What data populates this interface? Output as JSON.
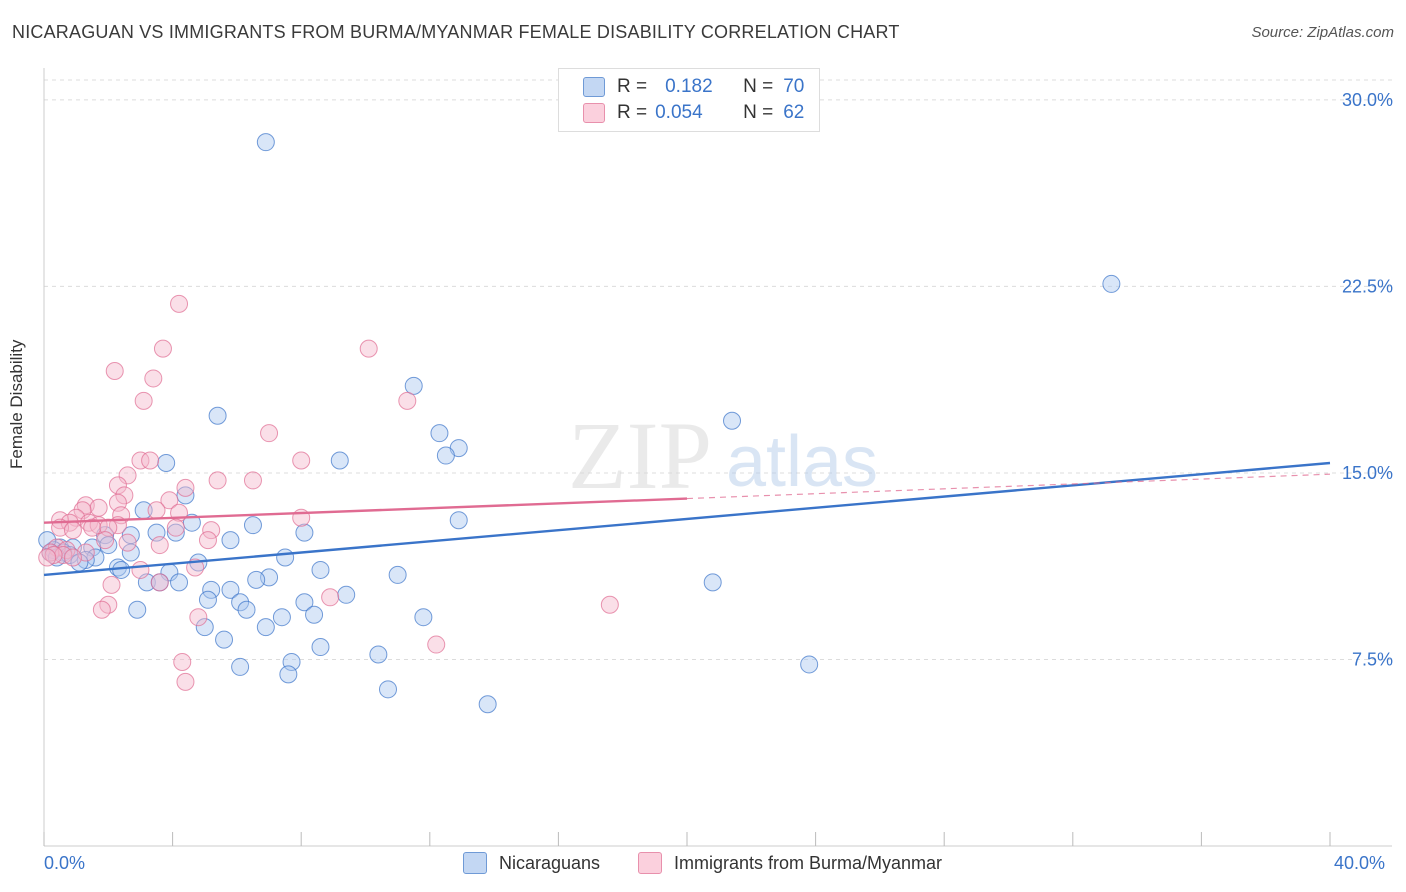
{
  "header": {
    "title": "NICARAGUAN VS IMMIGRANTS FROM BURMA/MYANMAR FEMALE DISABILITY CORRELATION CHART",
    "source": "Source: ZipAtlas.com"
  },
  "watermark": {
    "zip": "ZIP",
    "atlas": "atlas"
  },
  "colors": {
    "blue": "#3a74c9",
    "blue_fill": "#aac8f0",
    "pink": "#e06b92",
    "pink_fill": "#f5b9cc",
    "grid": "#dcdcdc",
    "axis_text": "#3a74c9"
  },
  "legend_top": [
    {
      "r_label": "R =",
      "r_value": "0.182",
      "n_label": "N =",
      "n_value": "70",
      "color": "blue"
    },
    {
      "r_label": "R =",
      "r_value": "0.054",
      "n_label": "N =",
      "n_value": "62",
      "color": "pink"
    }
  ],
  "legend_bottom": [
    {
      "label": "Nicaraguans",
      "color": "blue"
    },
    {
      "label": "Immigrants from Burma/Myanmar",
      "color": "pink"
    }
  ],
  "x_axis_labels": {
    "min": "0.0%",
    "max": "40.0%"
  },
  "chart_data": {
    "type": "scatter",
    "title": "NICARAGUAN VS IMMIGRANTS FROM BURMA/MYANMAR FEMALE DISABILITY CORRELATION CHART",
    "xlabel": "",
    "ylabel": "Female Disability",
    "xlim": [
      0,
      40
    ],
    "ylim": [
      0,
      30.8
    ],
    "y_ticks": [
      {
        "value": 7.5,
        "label": "7.5%"
      },
      {
        "value": 15.0,
        "label": "15.0%"
      },
      {
        "value": 22.5,
        "label": "22.5%"
      },
      {
        "value": 30.0,
        "label": "30.0%"
      }
    ],
    "grid": true,
    "legend_position": "top-center",
    "series": [
      {
        "name": "Nicaraguans",
        "color": "blue",
        "points": [
          [
            6.9,
            28.3
          ],
          [
            33.2,
            22.6
          ],
          [
            11.5,
            18.5
          ],
          [
            5.4,
            17.3
          ],
          [
            21.4,
            17.1
          ],
          [
            12.3,
            16.6
          ],
          [
            12.9,
            16.0
          ],
          [
            12.5,
            15.7
          ],
          [
            9.2,
            15.5
          ],
          [
            3.8,
            15.4
          ],
          [
            4.4,
            14.1
          ],
          [
            3.1,
            13.5
          ],
          [
            12.9,
            13.1
          ],
          [
            4.6,
            13.0
          ],
          [
            6.5,
            12.9
          ],
          [
            3.5,
            12.6
          ],
          [
            4.1,
            12.6
          ],
          [
            8.1,
            12.6
          ],
          [
            2.7,
            12.5
          ],
          [
            1.9,
            12.5
          ],
          [
            5.8,
            12.3
          ],
          [
            2.0,
            12.1
          ],
          [
            0.5,
            12.0
          ],
          [
            0.9,
            12.0
          ],
          [
            1.5,
            12.0
          ],
          [
            0.3,
            11.9
          ],
          [
            0.6,
            11.8
          ],
          [
            0.2,
            11.8
          ],
          [
            2.7,
            11.8
          ],
          [
            0.8,
            11.7
          ],
          [
            0.4,
            11.6
          ],
          [
            1.6,
            11.6
          ],
          [
            7.5,
            11.6
          ],
          [
            1.3,
            11.5
          ],
          [
            4.8,
            11.4
          ],
          [
            1.1,
            11.4
          ],
          [
            2.3,
            11.2
          ],
          [
            2.4,
            11.1
          ],
          [
            8.6,
            11.1
          ],
          [
            3.9,
            11.0
          ],
          [
            11.0,
            10.9
          ],
          [
            7.0,
            10.8
          ],
          [
            6.6,
            10.7
          ],
          [
            3.2,
            10.6
          ],
          [
            3.6,
            10.6
          ],
          [
            4.2,
            10.6
          ],
          [
            20.8,
            10.6
          ],
          [
            5.2,
            10.3
          ],
          [
            5.8,
            10.3
          ],
          [
            9.4,
            10.1
          ],
          [
            5.1,
            9.9
          ],
          [
            6.1,
            9.8
          ],
          [
            8.1,
            9.8
          ],
          [
            2.9,
            9.5
          ],
          [
            6.3,
            9.5
          ],
          [
            8.4,
            9.3
          ],
          [
            7.4,
            9.2
          ],
          [
            11.8,
            9.2
          ],
          [
            5.0,
            8.8
          ],
          [
            6.9,
            8.8
          ],
          [
            5.6,
            8.3
          ],
          [
            8.6,
            8.0
          ],
          [
            10.4,
            7.7
          ],
          [
            23.8,
            7.3
          ],
          [
            7.7,
            7.4
          ],
          [
            6.1,
            7.2
          ],
          [
            7.6,
            6.9
          ],
          [
            10.7,
            6.3
          ],
          [
            13.8,
            5.7
          ],
          [
            0.1,
            12.3
          ]
        ]
      },
      {
        "name": "Immigrants from Burma/Myanmar",
        "color": "pink",
        "points": [
          [
            4.2,
            21.8
          ],
          [
            10.1,
            20.0
          ],
          [
            3.7,
            20.0
          ],
          [
            2.2,
            19.1
          ],
          [
            3.4,
            18.8
          ],
          [
            3.1,
            17.9
          ],
          [
            11.3,
            17.9
          ],
          [
            7.0,
            16.6
          ],
          [
            3.0,
            15.5
          ],
          [
            3.3,
            15.5
          ],
          [
            8.0,
            15.5
          ],
          [
            2.6,
            14.9
          ],
          [
            5.4,
            14.7
          ],
          [
            6.5,
            14.7
          ],
          [
            2.3,
            14.5
          ],
          [
            4.4,
            14.4
          ],
          [
            2.5,
            14.1
          ],
          [
            3.9,
            13.9
          ],
          [
            2.3,
            13.8
          ],
          [
            1.3,
            13.7
          ],
          [
            1.7,
            13.6
          ],
          [
            3.5,
            13.5
          ],
          [
            1.2,
            13.5
          ],
          [
            4.2,
            13.4
          ],
          [
            2.4,
            13.3
          ],
          [
            1.0,
            13.2
          ],
          [
            8.0,
            13.2
          ],
          [
            0.5,
            13.1
          ],
          [
            1.4,
            13.0
          ],
          [
            0.8,
            13.0
          ],
          [
            2.3,
            12.9
          ],
          [
            1.7,
            12.9
          ],
          [
            0.5,
            12.8
          ],
          [
            1.5,
            12.8
          ],
          [
            2.0,
            12.8
          ],
          [
            4.1,
            12.8
          ],
          [
            5.2,
            12.7
          ],
          [
            0.9,
            12.7
          ],
          [
            5.1,
            12.3
          ],
          [
            1.9,
            12.3
          ],
          [
            2.6,
            12.2
          ],
          [
            3.6,
            12.1
          ],
          [
            0.4,
            12.0
          ],
          [
            0.7,
            11.9
          ],
          [
            0.2,
            11.8
          ],
          [
            1.3,
            11.8
          ],
          [
            0.6,
            11.7
          ],
          [
            0.3,
            11.7
          ],
          [
            0.9,
            11.6
          ],
          [
            0.1,
            11.6
          ],
          [
            4.7,
            11.2
          ],
          [
            3.0,
            11.1
          ],
          [
            2.1,
            10.5
          ],
          [
            3.6,
            10.6
          ],
          [
            8.9,
            10.0
          ],
          [
            2.0,
            9.7
          ],
          [
            17.6,
            9.7
          ],
          [
            1.8,
            9.5
          ],
          [
            4.8,
            9.2
          ],
          [
            12.2,
            8.1
          ],
          [
            4.3,
            7.4
          ],
          [
            4.4,
            6.6
          ]
        ]
      }
    ],
    "trend_lines": [
      {
        "series": "Nicaraguans",
        "x0": 0,
        "y0": 10.9,
        "x1": 40,
        "y1": 15.4,
        "style": "solid"
      },
      {
        "series": "Immigrants from Burma/Myanmar",
        "x0": 0,
        "y0": 13.0,
        "x1": 20,
        "y1": 13.97,
        "style": "solid"
      },
      {
        "series": "Immigrants from Burma/Myanmar",
        "x0": 20,
        "y0": 13.97,
        "x1": 40,
        "y1": 14.95,
        "style": "dashed"
      }
    ]
  }
}
